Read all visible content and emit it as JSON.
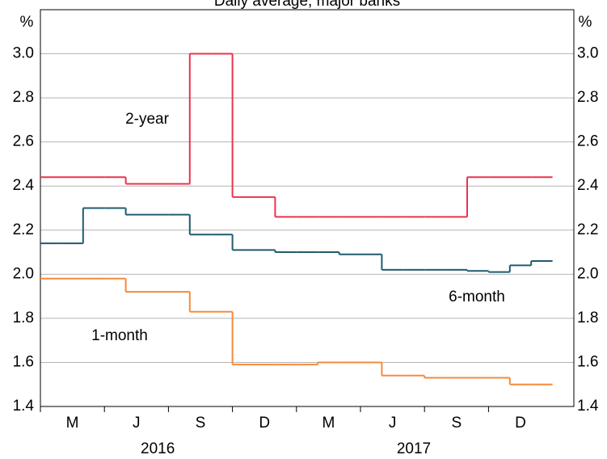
{
  "chart_data": {
    "type": "step-line",
    "title": "Daily average, major banks",
    "y_unit": "%",
    "x": [
      "2016-02",
      "2016-03",
      "2016-04",
      "2016-05",
      "2016-06",
      "2016-07",
      "2016-08",
      "2016-09",
      "2016-10",
      "2016-11",
      "2016-12",
      "2017-01",
      "2017-02",
      "2017-03",
      "2017-04",
      "2017-05",
      "2017-06",
      "2017-07",
      "2017-08",
      "2017-09",
      "2017-10",
      "2017-11",
      "2017-12",
      "2018-01"
    ],
    "series": [
      {
        "name": "2-year",
        "color": "#e8344e",
        "values": [
          2.44,
          2.44,
          2.44,
          2.44,
          2.41,
          2.41,
          2.41,
          3.0,
          3.0,
          2.35,
          2.35,
          2.26,
          2.26,
          2.26,
          2.26,
          2.26,
          2.26,
          2.26,
          2.26,
          2.26,
          2.44,
          2.44,
          2.44,
          2.44
        ]
      },
      {
        "name": "6-month",
        "color": "#1f5c6e",
        "values": [
          2.14,
          2.14,
          2.3,
          2.3,
          2.27,
          2.27,
          2.27,
          2.18,
          2.18,
          2.11,
          2.11,
          2.1,
          2.1,
          2.1,
          2.09,
          2.09,
          2.02,
          2.02,
          2.02,
          2.02,
          2.015,
          2.01,
          2.04,
          2.06
        ]
      },
      {
        "name": "1-month",
        "color": "#f58a3c",
        "values": [
          1.98,
          1.98,
          1.98,
          1.98,
          1.92,
          1.92,
          1.92,
          1.83,
          1.83,
          1.59,
          1.59,
          1.59,
          1.59,
          1.6,
          1.6,
          1.6,
          1.54,
          1.54,
          1.53,
          1.53,
          1.53,
          1.53,
          1.5,
          1.5
        ]
      }
    ],
    "xlim": [
      "2016-02",
      "2018-03"
    ],
    "xticks": [
      {
        "value": "2016-03",
        "label": "M"
      },
      {
        "value": "2016-06",
        "label": "J"
      },
      {
        "value": "2016-09",
        "label": "S"
      },
      {
        "value": "2016-12",
        "label": "D"
      },
      {
        "value": "2017-03",
        "label": "M"
      },
      {
        "value": "2017-06",
        "label": "J"
      },
      {
        "value": "2017-09",
        "label": "S"
      },
      {
        "value": "2017-12",
        "label": "D"
      }
    ],
    "year_labels": [
      2016,
      2017
    ],
    "ylim": [
      1.4,
      3.2
    ],
    "yticks": [
      1.4,
      1.6,
      1.8,
      {
        "value": 2,
        "label": "2.0"
      },
      2.2,
      2.4,
      2.6,
      2.8,
      {
        "value": 3,
        "label": "3.0"
      }
    ],
    "grid": true
  }
}
